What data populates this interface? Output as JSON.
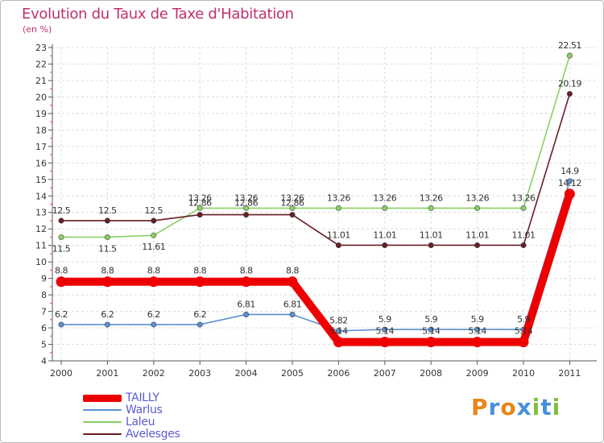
{
  "header": {
    "title": "Evolution du Taux de Taxe d'Habitation",
    "subtitle": "(en %)"
  },
  "brand": {
    "letters": [
      "P",
      "r",
      "o",
      "x",
      "i",
      "t",
      "i"
    ]
  },
  "colors": {
    "brand_letters": [
      "#e8861a",
      "#4a90d9",
      "#e8861a",
      "#4a90d9",
      "#7fbf3f",
      "#4a90d9",
      "#7fbf3f"
    ]
  },
  "chart_data": {
    "type": "line",
    "title": "Evolution du Taux de Taxe d'Habitation",
    "ylabel": "(en %)",
    "xlabel": "",
    "ylim": [
      4,
      23
    ],
    "grid": true,
    "categories": [
      "2000",
      "2001",
      "2002",
      "2003",
      "2004",
      "2005",
      "2006",
      "2007",
      "2008",
      "2009",
      "2010",
      "2011"
    ],
    "yticks": [
      "4",
      "5",
      "6",
      "7",
      "8",
      "9",
      "10",
      "11",
      "12",
      "13",
      "14",
      "15",
      "16",
      "17",
      "18",
      "19",
      "20",
      "21",
      "22",
      "23"
    ],
    "legend_placement": "bottom-left",
    "series": [
      {
        "name": "TAILLY",
        "color": "#ee0000",
        "values": [
          8.8,
          8.8,
          8.8,
          8.8,
          8.8,
          8.8,
          5.14,
          5.14,
          5.14,
          5.14,
          5.14,
          14.12
        ],
        "labels": [
          "8.8",
          "8.8",
          "8.8",
          "8.8",
          "8.8",
          "8.8",
          "5.14",
          "5.14",
          "5.14",
          "5.14",
          "5.14",
          "14.12"
        ]
      },
      {
        "name": "Warlus",
        "color": "#5b8fcd",
        "values": [
          6.2,
          6.2,
          6.2,
          6.2,
          6.81,
          6.81,
          5.82,
          5.9,
          5.9,
          5.9,
          5.9,
          14.9
        ],
        "labels": [
          "6.2",
          "6.2",
          "6.2",
          "6.2",
          "6.81",
          "6.81",
          "5.82",
          "5.9",
          "5.9",
          "5.9",
          "5.9",
          "14.9"
        ]
      },
      {
        "name": "Laleu",
        "color": "#88d066",
        "values": [
          11.5,
          11.5,
          11.61,
          13.26,
          13.26,
          13.26,
          13.26,
          13.26,
          13.26,
          13.26,
          13.26,
          22.51
        ],
        "labels": [
          "11.5",
          "11.5",
          "11.61",
          "13.26",
          "13.26",
          "13.26",
          "13.26",
          "13.26",
          "13.26",
          "13.26",
          "13.26",
          "22.51"
        ]
      },
      {
        "name": "Avelesges",
        "color": "#6a1d24",
        "values": [
          12.5,
          12.5,
          12.5,
          12.86,
          12.86,
          12.86,
          11.01,
          11.01,
          11.01,
          11.01,
          11.01,
          20.19
        ],
        "labels": [
          "12.5",
          "12.5",
          "12.5",
          "12.86",
          "12.86",
          "12.86",
          "11.01",
          "11.01",
          "11.01",
          "11.01",
          "11.01",
          "20.19"
        ]
      }
    ]
  }
}
